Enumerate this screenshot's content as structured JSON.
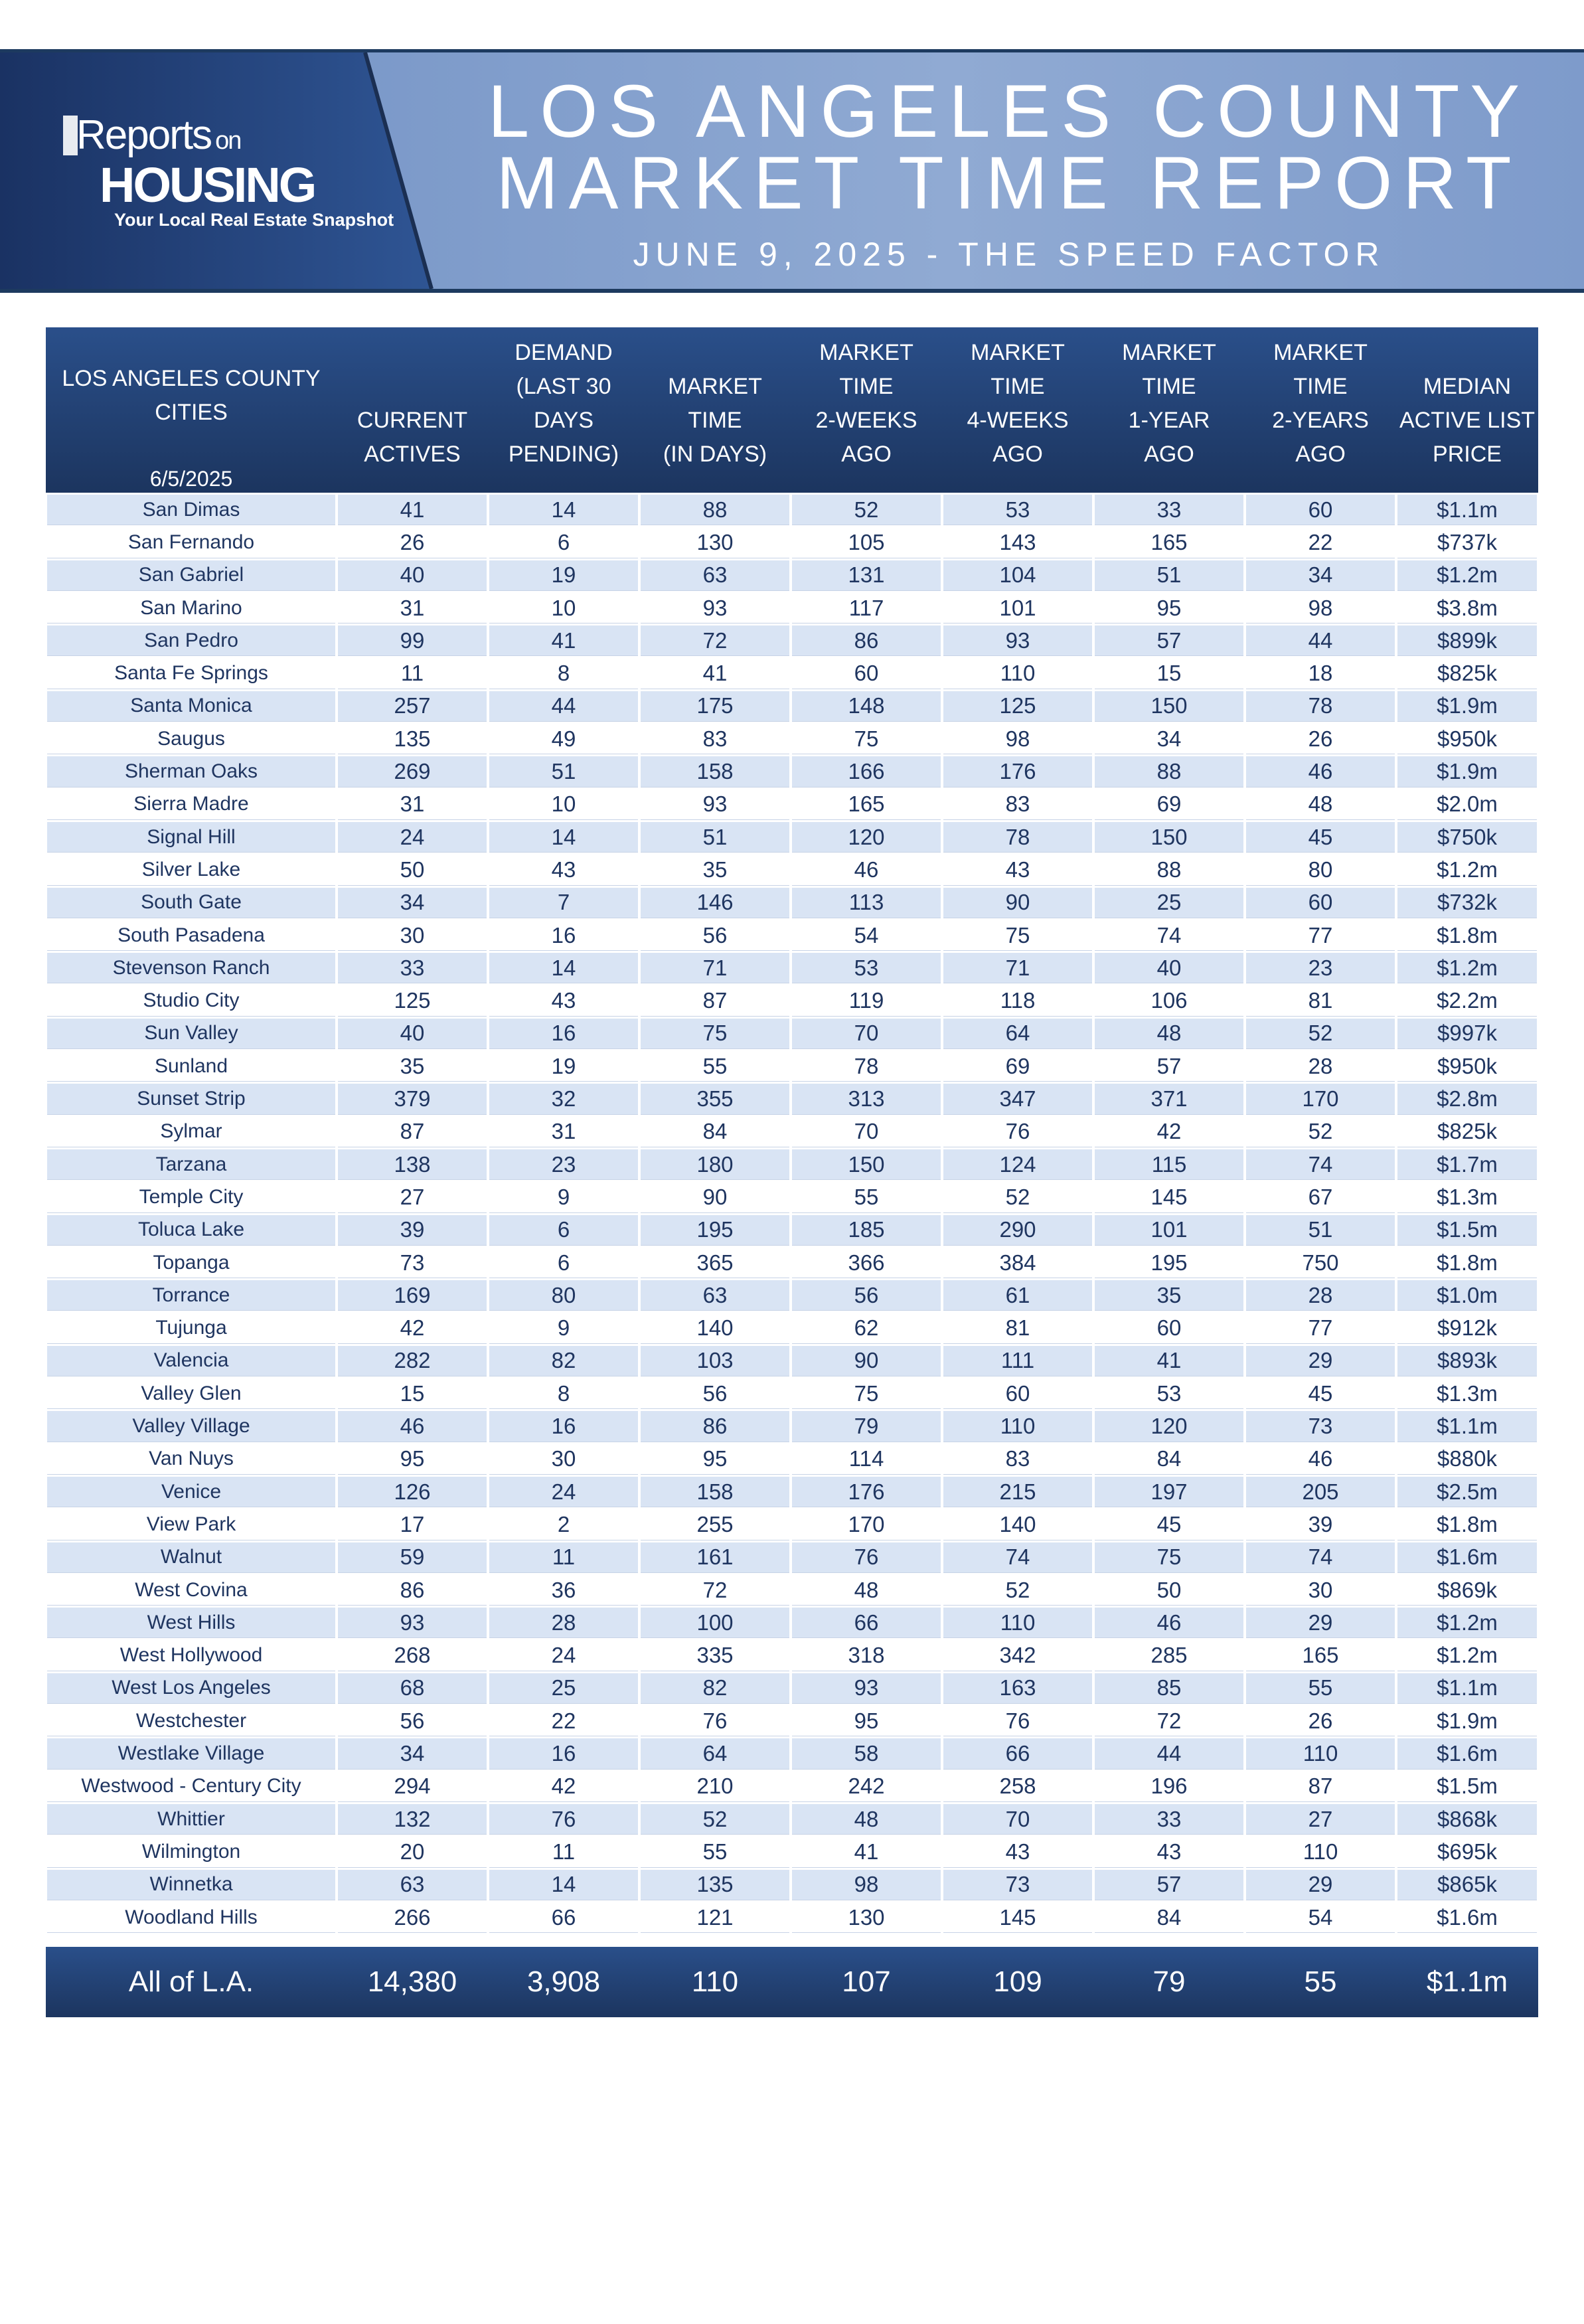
{
  "header": {
    "title_lines": [
      "LOS ANGELES COUNTY",
      "MARKET TIME REPORT"
    ],
    "subtitle": "JUNE 9, 2025 - THE SPEED FACTOR"
  },
  "logo": {
    "name_top": "Reports",
    "name_small": "on",
    "name_main": "HOUSING",
    "tagline": "Your Local Real Estate Snapshot"
  },
  "table": {
    "headers": [
      [
        "LOS ANGELES COUNTY",
        "CITIES"
      ],
      [
        "CURRENT",
        "ACTIVES"
      ],
      [
        "DEMAND",
        "(LAST 30",
        "DAYS",
        "PENDING)"
      ],
      [
        "MARKET",
        "TIME",
        "(IN DAYS)"
      ],
      [
        "MARKET",
        "TIME",
        "2-WEEKS",
        "AGO"
      ],
      [
        "MARKET",
        "TIME",
        "4-WEEKS",
        "AGO"
      ],
      [
        "MARKET",
        "TIME",
        "1-YEAR",
        "AGO"
      ],
      [
        "MARKET",
        "TIME",
        "2-YEARS",
        "AGO"
      ],
      [
        "MEDIAN",
        "ACTIVE LIST",
        "PRICE"
      ]
    ],
    "date": "6/5/2025",
    "rows": [
      [
        "San Dimas",
        41,
        14,
        88,
        52,
        53,
        33,
        60,
        "$1.1m"
      ],
      [
        "San Fernando",
        26,
        6,
        130,
        105,
        143,
        165,
        22,
        "$737k"
      ],
      [
        "San Gabriel",
        40,
        19,
        63,
        131,
        104,
        51,
        34,
        "$1.2m"
      ],
      [
        "San Marino",
        31,
        10,
        93,
        117,
        101,
        95,
        98,
        "$3.8m"
      ],
      [
        "San Pedro",
        99,
        41,
        72,
        86,
        93,
        57,
        44,
        "$899k"
      ],
      [
        "Santa Fe Springs",
        11,
        8,
        41,
        60,
        110,
        15,
        18,
        "$825k"
      ],
      [
        "Santa Monica",
        257,
        44,
        175,
        148,
        125,
        150,
        78,
        "$1.9m"
      ],
      [
        "Saugus",
        135,
        49,
        83,
        75,
        98,
        34,
        26,
        "$950k"
      ],
      [
        "Sherman Oaks",
        269,
        51,
        158,
        166,
        176,
        88,
        46,
        "$1.9m"
      ],
      [
        "Sierra Madre",
        31,
        10,
        93,
        165,
        83,
        69,
        48,
        "$2.0m"
      ],
      [
        "Signal Hill",
        24,
        14,
        51,
        120,
        78,
        150,
        45,
        "$750k"
      ],
      [
        "Silver Lake",
        50,
        43,
        35,
        46,
        43,
        88,
        80,
        "$1.2m"
      ],
      [
        "South Gate",
        34,
        7,
        146,
        113,
        90,
        25,
        60,
        "$732k"
      ],
      [
        "South Pasadena",
        30,
        16,
        56,
        54,
        75,
        74,
        77,
        "$1.8m"
      ],
      [
        "Stevenson Ranch",
        33,
        14,
        71,
        53,
        71,
        40,
        23,
        "$1.2m"
      ],
      [
        "Studio City",
        125,
        43,
        87,
        119,
        118,
        106,
        81,
        "$2.2m"
      ],
      [
        "Sun Valley",
        40,
        16,
        75,
        70,
        64,
        48,
        52,
        "$997k"
      ],
      [
        "Sunland",
        35,
        19,
        55,
        78,
        69,
        57,
        28,
        "$950k"
      ],
      [
        "Sunset Strip",
        379,
        32,
        355,
        313,
        347,
        371,
        170,
        "$2.8m"
      ],
      [
        "Sylmar",
        87,
        31,
        84,
        70,
        76,
        42,
        52,
        "$825k"
      ],
      [
        "Tarzana",
        138,
        23,
        180,
        150,
        124,
        115,
        74,
        "$1.7m"
      ],
      [
        "Temple City",
        27,
        9,
        90,
        55,
        52,
        145,
        67,
        "$1.3m"
      ],
      [
        "Toluca Lake",
        39,
        6,
        195,
        185,
        290,
        101,
        51,
        "$1.5m"
      ],
      [
        "Topanga",
        73,
        6,
        365,
        366,
        384,
        195,
        750,
        "$1.8m"
      ],
      [
        "Torrance",
        169,
        80,
        63,
        56,
        61,
        35,
        28,
        "$1.0m"
      ],
      [
        "Tujunga",
        42,
        9,
        140,
        62,
        81,
        60,
        77,
        "$912k"
      ],
      [
        "Valencia",
        282,
        82,
        103,
        90,
        111,
        41,
        29,
        "$893k"
      ],
      [
        "Valley Glen",
        15,
        8,
        56,
        75,
        60,
        53,
        45,
        "$1.3m"
      ],
      [
        "Valley Village",
        46,
        16,
        86,
        79,
        110,
        120,
        73,
        "$1.1m"
      ],
      [
        "Van Nuys",
        95,
        30,
        95,
        114,
        83,
        84,
        46,
        "$880k"
      ],
      [
        "Venice",
        126,
        24,
        158,
        176,
        215,
        197,
        205,
        "$2.5m"
      ],
      [
        "View Park",
        17,
        2,
        255,
        170,
        140,
        45,
        39,
        "$1.8m"
      ],
      [
        "Walnut",
        59,
        11,
        161,
        76,
        74,
        75,
        74,
        "$1.6m"
      ],
      [
        "West Covina",
        86,
        36,
        72,
        48,
        52,
        50,
        30,
        "$869k"
      ],
      [
        "West Hills",
        93,
        28,
        100,
        66,
        110,
        46,
        29,
        "$1.2m"
      ],
      [
        "West Hollywood",
        268,
        24,
        335,
        318,
        342,
        285,
        165,
        "$1.2m"
      ],
      [
        "West Los Angeles",
        68,
        25,
        82,
        93,
        163,
        85,
        55,
        "$1.1m"
      ],
      [
        "Westchester",
        56,
        22,
        76,
        95,
        76,
        72,
        26,
        "$1.9m"
      ],
      [
        "Westlake Village",
        34,
        16,
        64,
        58,
        66,
        44,
        110,
        "$1.6m"
      ],
      [
        "Westwood - Century City",
        294,
        42,
        210,
        242,
        258,
        196,
        87,
        "$1.5m"
      ],
      [
        "Whittier",
        132,
        76,
        52,
        48,
        70,
        33,
        27,
        "$868k"
      ],
      [
        "Wilmington",
        20,
        11,
        55,
        41,
        43,
        43,
        110,
        "$695k"
      ],
      [
        "Winnetka",
        63,
        14,
        135,
        98,
        73,
        57,
        29,
        "$865k"
      ],
      [
        "Woodland Hills",
        266,
        66,
        121,
        130,
        145,
        84,
        54,
        "$1.6m"
      ]
    ],
    "total": [
      "All of L.A.",
      "14,380",
      "3,908",
      110,
      107,
      109,
      79,
      55,
      "$1.1m"
    ]
  }
}
